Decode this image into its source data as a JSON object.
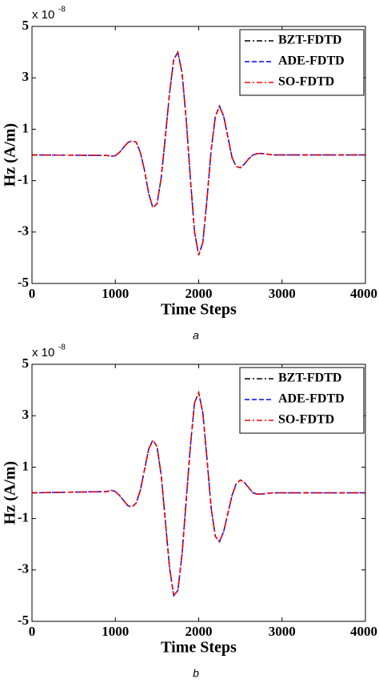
{
  "chart_data": [
    {
      "type": "line",
      "caption": "a",
      "xlabel": "Time Steps",
      "ylabel": "Hz (A/m)",
      "y_multiplier": {
        "base": "x 10",
        "exponent": "-8"
      },
      "xlim": [
        0,
        4000
      ],
      "xticks": [
        0,
        1000,
        2000,
        3000,
        4000
      ],
      "ylim": [
        -5,
        5
      ],
      "yticks": [
        -5,
        -3,
        -1,
        1,
        3,
        5
      ],
      "grid": false,
      "legend": "northeast",
      "x": [
        0,
        900,
        950,
        1000,
        1050,
        1100,
        1150,
        1200,
        1250,
        1300,
        1350,
        1400,
        1450,
        1500,
        1550,
        1600,
        1650,
        1700,
        1750,
        1800,
        1850,
        1900,
        1950,
        2000,
        2050,
        2100,
        2150,
        2200,
        2250,
        2300,
        2350,
        2400,
        2450,
        2500,
        2550,
        2600,
        2650,
        2700,
        2750,
        2800,
        2850,
        2900,
        4000
      ],
      "series": [
        {
          "name": "BZT-FDTD",
          "color": "#000000",
          "dash": "dashdot",
          "values": [
            0,
            -0.02,
            -0.05,
            -0.03,
            0.1,
            0.3,
            0.48,
            0.55,
            0.5,
            0.1,
            -0.6,
            -1.5,
            -2.05,
            -1.9,
            -0.9,
            0.7,
            2.4,
            3.7,
            4.0,
            3.2,
            1.4,
            -0.9,
            -3.0,
            -3.9,
            -3.4,
            -1.7,
            0.2,
            1.5,
            1.9,
            1.5,
            0.7,
            -0.1,
            -0.45,
            -0.5,
            -0.35,
            -0.15,
            0.0,
            0.05,
            0.06,
            0.04,
            0.02,
            0.0,
            0
          ]
        },
        {
          "name": "ADE-FDTD",
          "color": "#0000ff",
          "dash": "dashed",
          "values": [
            0,
            -0.02,
            -0.05,
            -0.03,
            0.1,
            0.3,
            0.48,
            0.55,
            0.5,
            0.1,
            -0.6,
            -1.5,
            -2.05,
            -1.9,
            -0.9,
            0.7,
            2.4,
            3.7,
            4.0,
            3.2,
            1.4,
            -0.9,
            -3.0,
            -3.9,
            -3.4,
            -1.7,
            0.2,
            1.5,
            1.9,
            1.5,
            0.7,
            -0.1,
            -0.45,
            -0.5,
            -0.35,
            -0.15,
            0.0,
            0.05,
            0.06,
            0.04,
            0.02,
            0.0,
            0
          ]
        },
        {
          "name": "SO-FDTD",
          "color": "#ff0000",
          "dash": "dashdot",
          "values": [
            0,
            -0.02,
            -0.05,
            -0.03,
            0.1,
            0.3,
            0.48,
            0.55,
            0.5,
            0.1,
            -0.6,
            -1.5,
            -2.05,
            -1.9,
            -0.9,
            0.7,
            2.4,
            3.7,
            4.0,
            3.2,
            1.4,
            -0.9,
            -3.0,
            -3.9,
            -3.4,
            -1.7,
            0.2,
            1.5,
            1.9,
            1.5,
            0.7,
            -0.1,
            -0.45,
            -0.5,
            -0.35,
            -0.15,
            0.0,
            0.05,
            0.06,
            0.04,
            0.02,
            0.0,
            0
          ]
        }
      ]
    },
    {
      "type": "line",
      "caption": "b",
      "xlabel": "Time Steps",
      "ylabel": "Hz (A/m)",
      "y_multiplier": {
        "base": "x 10",
        "exponent": "-8"
      },
      "xlim": [
        0,
        4000
      ],
      "xticks": [
        0,
        1000,
        2000,
        3000,
        4000
      ],
      "ylim": [
        -5,
        5
      ],
      "yticks": [
        -5,
        -3,
        -1,
        1,
        3,
        5
      ],
      "grid": false,
      "legend": "northeast",
      "x": [
        0,
        900,
        950,
        1000,
        1050,
        1100,
        1150,
        1200,
        1250,
        1300,
        1350,
        1400,
        1450,
        1500,
        1550,
        1600,
        1650,
        1700,
        1750,
        1800,
        1850,
        1900,
        1950,
        2000,
        2050,
        2100,
        2150,
        2200,
        2250,
        2300,
        2350,
        2400,
        2450,
        2500,
        2550,
        2600,
        2650,
        2700,
        2750,
        2800,
        2850,
        2900,
        4000
      ],
      "series": [
        {
          "name": "BZT-FDTD",
          "color": "#000000",
          "dash": "dashdot",
          "values": [
            0,
            0.05,
            0.1,
            0.05,
            -0.1,
            -0.3,
            -0.5,
            -0.55,
            -0.4,
            0.1,
            0.9,
            1.7,
            2.05,
            1.8,
            0.7,
            -1.1,
            -2.9,
            -4.0,
            -3.8,
            -2.4,
            -0.3,
            1.8,
            3.5,
            3.9,
            3.1,
            1.3,
            -0.6,
            -1.7,
            -1.9,
            -1.5,
            -0.8,
            -0.1,
            0.35,
            0.5,
            0.4,
            0.2,
            0.0,
            -0.05,
            -0.05,
            -0.03,
            -0.01,
            0.0,
            0
          ]
        },
        {
          "name": "ADE-FDTD",
          "color": "#0000ff",
          "dash": "dashed",
          "values": [
            0,
            0.05,
            0.1,
            0.05,
            -0.1,
            -0.3,
            -0.5,
            -0.55,
            -0.4,
            0.1,
            0.9,
            1.7,
            2.05,
            1.8,
            0.7,
            -1.1,
            -2.9,
            -4.0,
            -3.8,
            -2.4,
            -0.3,
            1.8,
            3.5,
            3.9,
            3.1,
            1.3,
            -0.6,
            -1.7,
            -1.9,
            -1.5,
            -0.8,
            -0.1,
            0.35,
            0.5,
            0.4,
            0.2,
            0.0,
            -0.05,
            -0.05,
            -0.03,
            -0.01,
            0.0,
            0
          ]
        },
        {
          "name": "SO-FDTD",
          "color": "#ff0000",
          "dash": "dashdot",
          "values": [
            0,
            0.05,
            0.1,
            0.05,
            -0.1,
            -0.3,
            -0.5,
            -0.55,
            -0.4,
            0.1,
            0.9,
            1.7,
            2.05,
            1.8,
            0.7,
            -1.1,
            -2.9,
            -4.0,
            -3.8,
            -2.4,
            -0.3,
            1.8,
            3.5,
            3.9,
            3.1,
            1.3,
            -0.6,
            -1.7,
            -1.9,
            -1.5,
            -0.8,
            -0.1,
            0.35,
            0.5,
            0.4,
            0.2,
            0.0,
            -0.05,
            -0.05,
            -0.03,
            -0.01,
            0.0,
            0
          ]
        }
      ]
    }
  ]
}
